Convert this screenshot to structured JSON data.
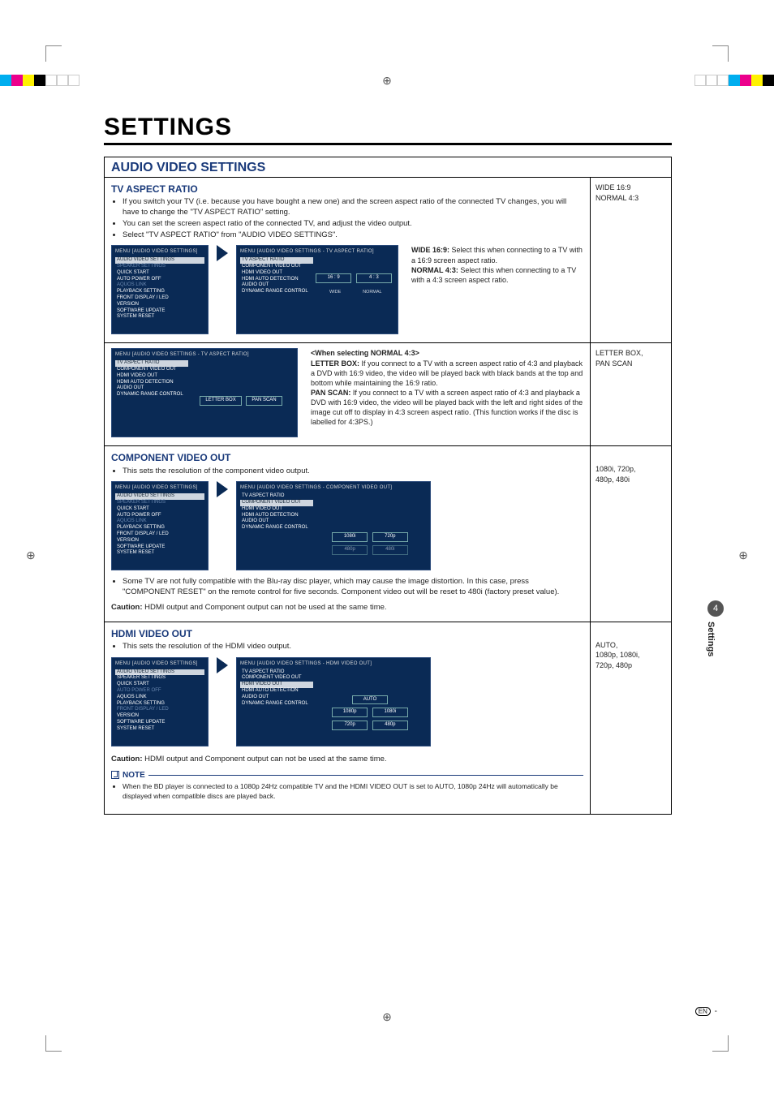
{
  "page_title": "SETTINGS",
  "colors": {
    "heading_blue": "#1a3a7a",
    "menu_bg": "#0a2a55",
    "selected_bg": "#cfd6df"
  },
  "reg_colors_left": [
    "#00aeef",
    "#ec008c",
    "#fff200",
    "#000000",
    "#ffffff",
    "#ffffff",
    "#ffffff"
  ],
  "reg_colors_right": [
    "#ffffff",
    "#ffffff",
    "#ffffff",
    "#00aeef",
    "#ec008c",
    "#fff200",
    "#000000"
  ],
  "section": {
    "title": "AUDIO VIDEO SETTINGS"
  },
  "tv_aspect": {
    "title": "TV ASPECT RATIO",
    "bullets": [
      "If you switch your TV (i.e. because you have bought a new one) and the screen aspect ratio of the connected TV changes, you will have to change the \"TV ASPECT RATIO\" setting.",
      "You can set the screen aspect ratio of the connected TV, and adjust the video output.",
      "Select \"TV ASPECT RATIO\" from \"AUDIO VIDEO SETTINGS\"."
    ],
    "side": "WIDE 16:9\nNORMAL 4:3",
    "menu1_title": "MENU   [AUDIO VIDEO SETTINGS]",
    "menu1_items": [
      {
        "t": "AUDIO VIDEO SETTINGS",
        "sel": true
      },
      {
        "t": "SPEAKER SETTINGS",
        "faded": true
      },
      {
        "t": "QUICK START"
      },
      {
        "t": "AUTO POWER OFF"
      },
      {
        "t": "AQUOS LINK",
        "faded": true
      },
      {
        "t": "PLAYBACK SETTING"
      },
      {
        "t": "FRONT DISPLAY / LED"
      },
      {
        "t": "VERSION"
      },
      {
        "t": "SOFTWARE UPDATE"
      },
      {
        "t": "SYSTEM RESET"
      }
    ],
    "menu2_title": "MENU   [AUDIO VIDEO SETTINGS  -  TV ASPECT RATIO]",
    "menu2_items": [
      {
        "t": "TV ASPECT RATIO",
        "sel": true
      },
      {
        "t": "COMPONENT VIDEO OUT"
      },
      {
        "t": "HDMI VIDEO OUT"
      },
      {
        "t": "HDMI AUTO DETECTION"
      },
      {
        "t": "AUDIO OUT"
      },
      {
        "t": "DYNAMIC RANGE CONTROL"
      }
    ],
    "opts_top": [
      "16 : 9",
      "4 : 3"
    ],
    "opts_labels": [
      "WIDE",
      "NORMAL"
    ],
    "explain1_head": "WIDE 16:9:",
    "explain1_body": " Select this when connecting to a TV with a 16:9 screen aspect ratio.",
    "explain2_head": "NORMAL 4:3:",
    "explain2_body": " Select this when connecting to a TV with a 4:3 screen aspect ratio.",
    "side2": "LETTER BOX,\nPAN SCAN",
    "menu3_title": "MENU   [AUDIO VIDEO SETTINGS  -  TV ASPECT RATIO]",
    "menu3_items": [
      {
        "t": "TV ASPECT RATIO",
        "sel": true
      },
      {
        "t": "COMPONENT VIDEO OUT"
      },
      {
        "t": "HDMI VIDEO OUT"
      },
      {
        "t": "HDMI AUTO DETECTION"
      },
      {
        "t": "AUDIO OUT"
      },
      {
        "t": "DYNAMIC RANGE CONTROL"
      }
    ],
    "opts2": [
      "LETTER BOX",
      "PAN SCAN"
    ],
    "when_title": "<When selecting NORMAL 4:3>",
    "lb_head": "LETTER BOX:",
    "lb_body": " If you connect to a TV with a screen aspect ratio of 4:3 and playback a DVD with 16:9 video, the video will be played back with black bands at the top and bottom while maintaining the 16:9 ratio.",
    "ps_head": "PAN SCAN:",
    "ps_body": " If you connect to a TV with a screen aspect ratio of 4:3 and playback a DVD with 16:9 video, the video will be played back with the left and right sides of the image cut off to display in 4:3 screen aspect ratio. (This function works if the disc is labelled for 4:3PS.)"
  },
  "component": {
    "title": "COMPONENT VIDEO OUT",
    "bullet": "This sets the resolution of the component video output.",
    "side": "1080i, 720p,\n480p, 480i",
    "menu1_title": "MENU   [AUDIO VIDEO SETTINGS]",
    "menu2_title": "MENU   [AUDIO VIDEO SETTINGS  -  COMPONENT VIDEO OUT]",
    "menu2_items": [
      {
        "t": "TV ASPECT RATIO"
      },
      {
        "t": "COMPONENT VIDEO OUT",
        "sel": true
      },
      {
        "t": "HDMI VIDEO OUT"
      },
      {
        "t": "HDMI AUTO DETECTION"
      },
      {
        "t": "AUDIO OUT"
      },
      {
        "t": "DYNAMIC RANGE CONTROL"
      }
    ],
    "opts": [
      "1080i",
      "720p",
      "480p",
      "480i"
    ],
    "note_bullet": "Some TV are not fully compatible with the Blu-ray disc player, which may cause the image distortion. In this case, press \"COMPONENT RESET\" on the remote control for five seconds. Component video out will be reset to 480i (factory preset value).",
    "caution_label": "Caution:",
    "caution": " HDMI output and Component output can not be used at the same time."
  },
  "hdmi": {
    "title": "HDMI VIDEO OUT",
    "bullet": "This sets the resolution of the HDMI video output.",
    "side": "AUTO,\n1080p, 1080i,\n720p, 480p",
    "menu1_title": "MENU   [AUDIO VIDEO SETTINGS]",
    "menu1_items": [
      {
        "t": "AUDIO VIDEO SETTINGS",
        "sel": true
      },
      {
        "t": "SPEAKER SETTINGS"
      },
      {
        "t": "QUICK START"
      },
      {
        "t": "AUTO POWER OFF",
        "faded": true
      },
      {
        "t": "AQUOS LINK"
      },
      {
        "t": "PLAYBACK SETTING"
      },
      {
        "t": "FRONT DISPLAY / LED",
        "faded": true
      },
      {
        "t": "VERSION"
      },
      {
        "t": "SOFTWARE UPDATE"
      },
      {
        "t": "SYSTEM RESET"
      }
    ],
    "menu2_title": "MENU   [AUDIO VIDEO SETTINGS  -  HDMI VIDEO OUT]",
    "menu2_items": [
      {
        "t": "TV ASPECT RATIO"
      },
      {
        "t": "COMPONENT VIDEO OUT"
      },
      {
        "t": "HDMI VIDEO OUT",
        "sel": true
      },
      {
        "t": "HDMI AUTO DETECTION"
      },
      {
        "t": "AUDIO OUT"
      },
      {
        "t": "DYNAMIC RANGE CONTROL"
      }
    ],
    "opts": [
      "AUTO",
      "1080p",
      "1080i",
      "720p",
      "480p"
    ],
    "caution_label": "Caution:",
    "caution": " HDMI output and Component output can not be used at the same time.",
    "note_label": "NOTE",
    "note_body": "When the BD player is connected to a 1080p 24Hz compatible TV and the HDMI VIDEO OUT is set to AUTO, 1080p 24Hz will automatically be displayed when compatible discs are played back."
  },
  "sidetab": {
    "num": "4",
    "text": "Settings"
  },
  "en_label": "EN",
  "en_dash": " -"
}
